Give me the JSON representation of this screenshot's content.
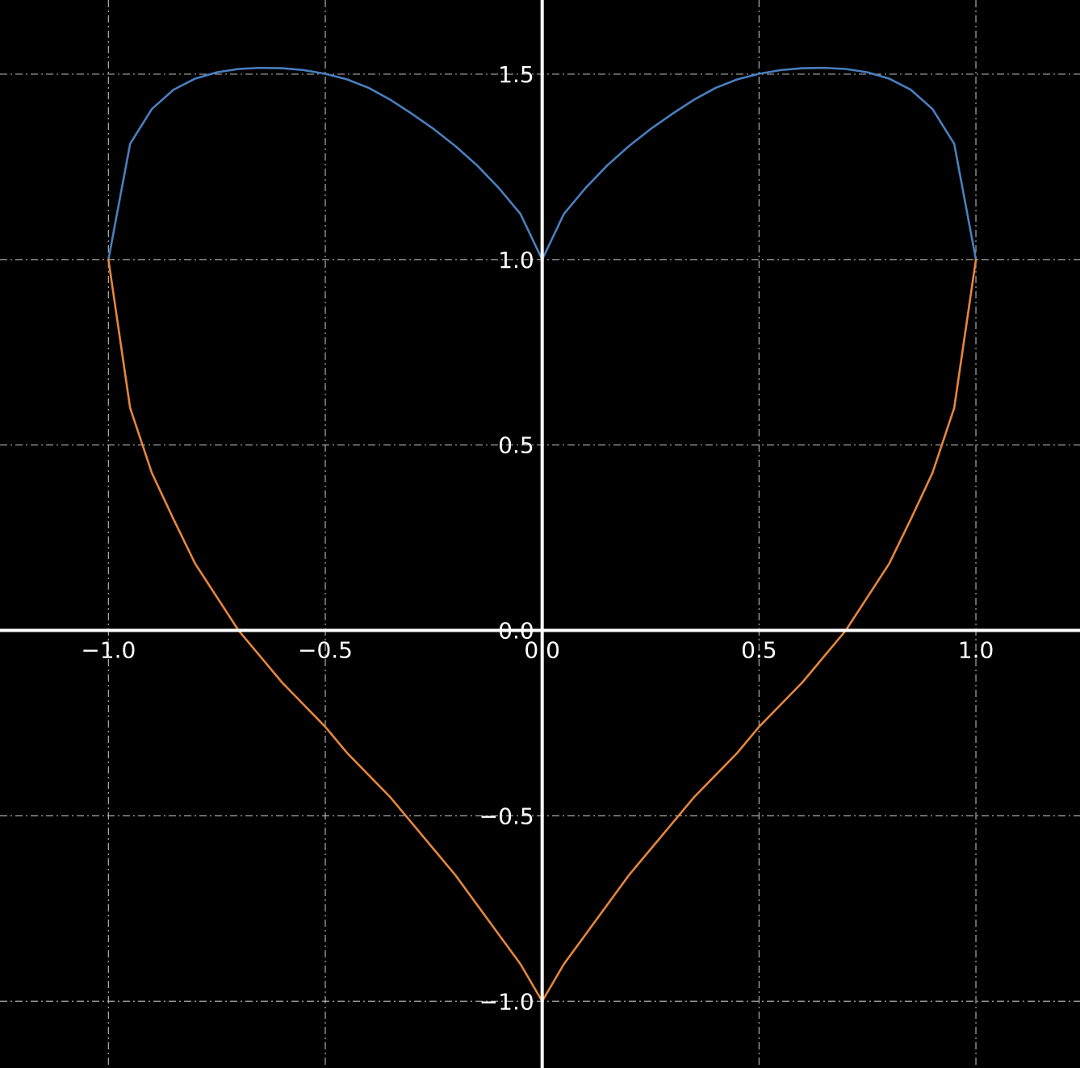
{
  "chart_data": {
    "type": "line",
    "title": "",
    "xlabel": "",
    "ylabel": "",
    "xlim": [
      -1.25,
      1.24
    ],
    "ylim": [
      -1.18,
      1.7
    ],
    "grid": true,
    "spines": "centered",
    "background_color": "#000000",
    "text_color": "#ffffff",
    "grid_color": "#cccccc",
    "xticks": [
      {
        "value": -1.0,
        "label": "−1.0"
      },
      {
        "value": -0.5,
        "label": "−0.5"
      },
      {
        "value": 0.0,
        "label": "0.0"
      },
      {
        "value": 0.5,
        "label": "0.5"
      },
      {
        "value": 1.0,
        "label": "1.0"
      }
    ],
    "yticks": [
      {
        "value": -1.0,
        "label": "−1.0"
      },
      {
        "value": -0.5,
        "label": "−0.5"
      },
      {
        "value": 0.0,
        "label": "0.0"
      },
      {
        "value": 0.5,
        "label": "0.5"
      },
      {
        "value": 1.0,
        "label": "1.0"
      },
      {
        "value": 1.5,
        "label": "1.5"
      }
    ],
    "series": [
      {
        "color": "#4a7fbf",
        "x": [
          -1.0,
          -0.95,
          -0.9,
          -0.85,
          -0.8,
          -0.75,
          -0.7,
          -0.65,
          -0.6,
          -0.55,
          -0.5,
          -0.45,
          -0.4,
          -0.35,
          -0.3,
          -0.25,
          -0.2,
          -0.15,
          -0.1,
          -0.05,
          0.0,
          0.05,
          0.1,
          0.15,
          0.2,
          0.25,
          0.3,
          0.35,
          0.4,
          0.45,
          0.5,
          0.55,
          0.6,
          0.65,
          0.7,
          0.75,
          0.8,
          0.85,
          0.9,
          0.95,
          1.0
        ],
        "y": [
          1.0,
          1.312,
          1.406,
          1.458,
          1.488,
          1.505,
          1.514,
          1.517,
          1.516,
          1.511,
          1.501,
          1.486,
          1.463,
          1.431,
          1.393,
          1.352,
          1.306,
          1.254,
          1.193,
          1.123,
          1.0,
          1.123,
          1.193,
          1.254,
          1.306,
          1.352,
          1.393,
          1.431,
          1.463,
          1.486,
          1.501,
          1.511,
          1.516,
          1.517,
          1.514,
          1.505,
          1.488,
          1.458,
          1.406,
          1.312,
          1.0
        ]
      },
      {
        "color": "#e8863a",
        "x": [
          -1.0,
          -0.95,
          -0.9,
          -0.85,
          -0.8,
          -0.75,
          -0.7,
          -0.65,
          -0.6,
          -0.55,
          -0.5,
          -0.45,
          -0.4,
          -0.35,
          -0.3,
          -0.25,
          -0.2,
          -0.15,
          -0.1,
          -0.05,
          0.0,
          0.05,
          0.1,
          0.15,
          0.2,
          0.25,
          0.3,
          0.35,
          0.4,
          0.45,
          0.5,
          0.55,
          0.6,
          0.65,
          0.7,
          0.75,
          0.8,
          0.85,
          0.9,
          0.95,
          1.0
        ],
        "y": [
          1.0,
          0.6,
          0.425,
          0.3,
          0.18,
          0.09,
          0.0,
          -0.07,
          -0.14,
          -0.2,
          -0.26,
          -0.33,
          -0.39,
          -0.45,
          -0.52,
          -0.59,
          -0.66,
          -0.74,
          -0.82,
          -0.9,
          -1.0,
          -0.9,
          -0.82,
          -0.74,
          -0.66,
          -0.59,
          -0.52,
          -0.45,
          -0.39,
          -0.33,
          -0.26,
          -0.2,
          -0.14,
          -0.07,
          0.0,
          0.09,
          0.18,
          0.3,
          0.425,
          0.6,
          1.0
        ]
      }
    ]
  }
}
